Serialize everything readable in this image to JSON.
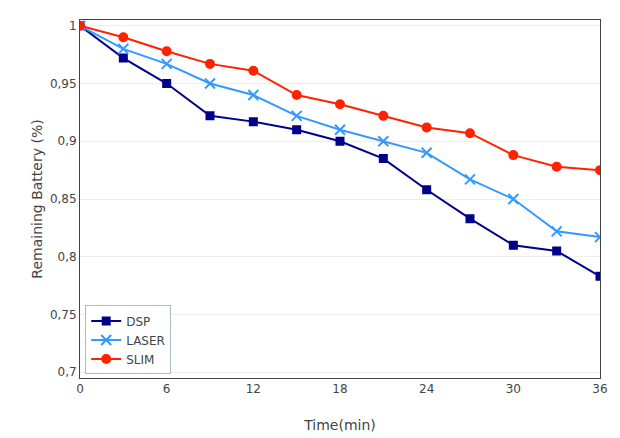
{
  "chart_data": {
    "type": "line",
    "xlabel": "Time(min)",
    "ylabel": "Remaining Battery (%)",
    "x": [
      0,
      3,
      6,
      9,
      12,
      15,
      18,
      21,
      24,
      27,
      30,
      33,
      36
    ],
    "series": [
      {
        "name": "DSP",
        "color": "#00008B",
        "marker": "square",
        "values": [
          1.0,
          0.972,
          0.95,
          0.922,
          0.917,
          0.91,
          0.9,
          0.885,
          0.858,
          0.833,
          0.81,
          0.805,
          0.783
        ]
      },
      {
        "name": "LASER",
        "color": "#3399FF",
        "marker": "x",
        "values": [
          1.0,
          0.98,
          0.967,
          0.95,
          0.94,
          0.922,
          0.91,
          0.9,
          0.89,
          0.867,
          0.85,
          0.822,
          0.817
        ]
      },
      {
        "name": "SLIM",
        "color": "#FF2200",
        "marker": "circle",
        "values": [
          1.0,
          0.99,
          0.978,
          0.967,
          0.961,
          0.94,
          0.932,
          0.922,
          0.912,
          0.907,
          0.888,
          0.878,
          0.875
        ]
      }
    ],
    "xlim": [
      0,
      36
    ],
    "xticks": [
      0,
      6,
      12,
      18,
      24,
      30,
      36
    ],
    "ylim": [
      0.695,
      1.005
    ],
    "yticks": [
      {
        "value": 0.7,
        "label": "0,7"
      },
      {
        "value": 0.75,
        "label": "0,75"
      },
      {
        "value": 0.8,
        "label": "0,8"
      },
      {
        "value": 0.85,
        "label": "0,85"
      },
      {
        "value": 0.9,
        "label": "0,9"
      },
      {
        "value": 0.95,
        "label": "0,95"
      },
      1
    ],
    "grid": "y",
    "legend": "lower left"
  }
}
